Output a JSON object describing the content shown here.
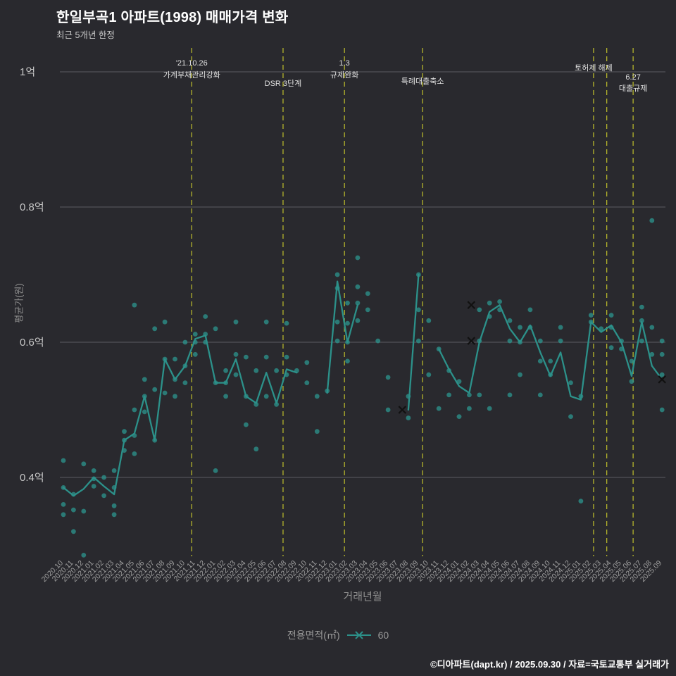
{
  "footer": {
    "credit": "©디아파트(dapt.kr) / 2025.09.30 / 자료=국토교통부 실거래가"
  },
  "chart_data": {
    "type": "line+scatter",
    "title": "한일부곡1 아파트(1998) 매매가격 변화",
    "subtitle": "최근 5개년 한정",
    "xlabel": "거래년월",
    "ylabel": "평균가(원)",
    "unit": "억",
    "ylim": [
      0.28,
      1.0
    ],
    "grid": true,
    "legend": {
      "label": "전용면적(㎡)",
      "marker": "x-line",
      "value": "60",
      "position": "bottom-center"
    },
    "y_ticks": [
      {
        "value": 1.0,
        "label": "1억"
      },
      {
        "value": 0.8,
        "label": "0.8억"
      },
      {
        "value": 0.6,
        "label": "0.6억"
      },
      {
        "value": 0.4,
        "label": "0.4억"
      }
    ],
    "x_categories": [
      "2020.10",
      "2020.11",
      "2020.12",
      "2021.01",
      "2021.02",
      "2021.03",
      "2021.04",
      "2021.05",
      "2021.06",
      "2021.07",
      "2021.08",
      "2021.09",
      "2021.10",
      "2021.11",
      "2021.12",
      "2022.01",
      "2022.02",
      "2022.03",
      "2022.04",
      "2022.05",
      "2022.06",
      "2022.07",
      "2022.08",
      "2022.09",
      "2022.10",
      "2022.11",
      "2022.12",
      "2023.01",
      "2023.02",
      "2023.03",
      "2023.04",
      "2023.05",
      "2023.06",
      "2023.07",
      "2023.08",
      "2023.09",
      "2023.10",
      "2023.11",
      "2023.12",
      "2024.01",
      "2024.02",
      "2024.03",
      "2024.04",
      "2024.05",
      "2024.06",
      "2024.07",
      "2024.08",
      "2024.09",
      "2024.10",
      "2024.11",
      "2024.12",
      "2025.01",
      "2025.02",
      "2025.03",
      "2025.04",
      "2025.05",
      "2025.06",
      "2025.07",
      "2025.08",
      "2025.09"
    ],
    "series": [
      {
        "name": "60",
        "type": "line",
        "values": [
          0.385,
          0.373,
          0.383,
          0.4,
          0.387,
          0.375,
          0.455,
          0.465,
          0.52,
          0.455,
          0.575,
          0.545,
          0.565,
          0.605,
          0.61,
          0.54,
          0.54,
          0.575,
          0.52,
          0.51,
          0.555,
          0.51,
          0.56,
          0.555,
          null,
          null,
          0.525,
          0.69,
          0.6,
          0.655,
          null,
          null,
          null,
          null,
          0.5,
          0.7,
          null,
          0.59,
          0.56,
          0.535,
          0.525,
          0.6,
          0.645,
          0.655,
          0.62,
          0.6,
          0.625,
          0.585,
          0.55,
          0.585,
          0.52,
          0.515,
          0.63,
          0.615,
          0.625,
          0.6,
          0.55,
          0.63,
          0.565,
          0.545
        ]
      }
    ],
    "scatter_points": [
      [
        0,
        0.385
      ],
      [
        0,
        0.36
      ],
      [
        0,
        0.425
      ],
      [
        0,
        0.345
      ],
      [
        1,
        0.375
      ],
      [
        1,
        0.352
      ],
      [
        1,
        0.32
      ],
      [
        2,
        0.42
      ],
      [
        2,
        0.35
      ],
      [
        2,
        0.285
      ],
      [
        3,
        0.41
      ],
      [
        3,
        0.398
      ],
      [
        3,
        0.387
      ],
      [
        4,
        0.4
      ],
      [
        4,
        0.373
      ],
      [
        5,
        0.41
      ],
      [
        5,
        0.385
      ],
      [
        5,
        0.358
      ],
      [
        5,
        0.345
      ],
      [
        6,
        0.468
      ],
      [
        6,
        0.455
      ],
      [
        6,
        0.44
      ],
      [
        7,
        0.655
      ],
      [
        7,
        0.5
      ],
      [
        7,
        0.462
      ],
      [
        7,
        0.435
      ],
      [
        8,
        0.545
      ],
      [
        8,
        0.52
      ],
      [
        8,
        0.497
      ],
      [
        9,
        0.62
      ],
      [
        9,
        0.53
      ],
      [
        9,
        0.455
      ],
      [
        10,
        0.63
      ],
      [
        10,
        0.575
      ],
      [
        10,
        0.525
      ],
      [
        11,
        0.575
      ],
      [
        11,
        0.545
      ],
      [
        11,
        0.52
      ],
      [
        12,
        0.6
      ],
      [
        12,
        0.565
      ],
      [
        12,
        0.54
      ],
      [
        13,
        0.612
      ],
      [
        13,
        0.6
      ],
      [
        13,
        0.582
      ],
      [
        14,
        0.638
      ],
      [
        14,
        0.612
      ],
      [
        14,
        0.6
      ],
      [
        15,
        0.62
      ],
      [
        15,
        0.54
      ],
      [
        15,
        0.41
      ],
      [
        16,
        0.558
      ],
      [
        16,
        0.54
      ],
      [
        16,
        0.52
      ],
      [
        17,
        0.63
      ],
      [
        17,
        0.582
      ],
      [
        17,
        0.552
      ],
      [
        18,
        0.578
      ],
      [
        18,
        0.52
      ],
      [
        18,
        0.478
      ],
      [
        19,
        0.558
      ],
      [
        19,
        0.508
      ],
      [
        19,
        0.442
      ],
      [
        20,
        0.63
      ],
      [
        20,
        0.578
      ],
      [
        20,
        0.52
      ],
      [
        21,
        0.558
      ],
      [
        21,
        0.508
      ],
      [
        22,
        0.628
      ],
      [
        22,
        0.578
      ],
      [
        22,
        0.552
      ],
      [
        23,
        0.558
      ],
      [
        24,
        0.57
      ],
      [
        24,
        0.54
      ],
      [
        25,
        0.52
      ],
      [
        25,
        0.468
      ],
      [
        26,
        0.528
      ],
      [
        27,
        0.7
      ],
      [
        27,
        0.68
      ],
      [
        27,
        0.63
      ],
      [
        27,
        0.602
      ],
      [
        28,
        0.658
      ],
      [
        28,
        0.628
      ],
      [
        28,
        0.6
      ],
      [
        28,
        0.572
      ],
      [
        29,
        0.725
      ],
      [
        29,
        0.682
      ],
      [
        29,
        0.658
      ],
      [
        29,
        0.632
      ],
      [
        30,
        0.672
      ],
      [
        30,
        0.648
      ],
      [
        31,
        0.602
      ],
      [
        32,
        0.548
      ],
      [
        32,
        0.5
      ],
      [
        34,
        0.52
      ],
      [
        34,
        0.488
      ],
      [
        35,
        0.7
      ],
      [
        35,
        0.648
      ],
      [
        35,
        0.602
      ],
      [
        36,
        0.632
      ],
      [
        36,
        0.552
      ],
      [
        37,
        0.59
      ],
      [
        37,
        0.502
      ],
      [
        38,
        0.558
      ],
      [
        38,
        0.522
      ],
      [
        39,
        0.542
      ],
      [
        39,
        0.49
      ],
      [
        40,
        0.522
      ],
      [
        40,
        0.502
      ],
      [
        41,
        0.648
      ],
      [
        41,
        0.602
      ],
      [
        41,
        0.522
      ],
      [
        42,
        0.658
      ],
      [
        42,
        0.638
      ],
      [
        42,
        0.502
      ],
      [
        43,
        0.66
      ],
      [
        43,
        0.648
      ],
      [
        44,
        0.632
      ],
      [
        44,
        0.602
      ],
      [
        44,
        0.522
      ],
      [
        45,
        0.622
      ],
      [
        45,
        0.6
      ],
      [
        45,
        0.552
      ],
      [
        46,
        0.648
      ],
      [
        46,
        0.622
      ],
      [
        47,
        0.602
      ],
      [
        47,
        0.572
      ],
      [
        47,
        0.522
      ],
      [
        48,
        0.572
      ],
      [
        48,
        0.552
      ],
      [
        49,
        0.622
      ],
      [
        49,
        0.602
      ],
      [
        50,
        0.54
      ],
      [
        50,
        0.49
      ],
      [
        51,
        0.52
      ],
      [
        51,
        0.365
      ],
      [
        52,
        0.64
      ],
      [
        52,
        0.63
      ],
      [
        53,
        0.62
      ],
      [
        54,
        0.64
      ],
      [
        54,
        0.622
      ],
      [
        54,
        0.592
      ],
      [
        55,
        0.602
      ],
      [
        55,
        0.59
      ],
      [
        56,
        0.572
      ],
      [
        56,
        0.542
      ],
      [
        57,
        0.652
      ],
      [
        57,
        0.632
      ],
      [
        57,
        0.602
      ],
      [
        58,
        0.78
      ],
      [
        58,
        0.622
      ],
      [
        58,
        0.582
      ],
      [
        59,
        0.602
      ],
      [
        59,
        0.582
      ],
      [
        59,
        0.552
      ],
      [
        59,
        0.5
      ]
    ],
    "x_markers": [
      [
        33.4,
        0.5
      ],
      [
        40.2,
        0.655
      ],
      [
        40.2,
        0.602
      ],
      [
        59,
        0.545
      ]
    ],
    "events": [
      {
        "x_index": 12.65,
        "labels": [
          {
            "text": "'21.10.26",
            "y": 93
          },
          {
            "text": "가계부채관리강화",
            "y": 110
          }
        ]
      },
      {
        "x_index": 21.65,
        "labels": [
          {
            "text": "DSR 3단계",
            "y": 122
          }
        ]
      },
      {
        "x_index": 27.7,
        "labels": [
          {
            "text": "1.3",
            "y": 93
          },
          {
            "text": "규제완화",
            "y": 110
          }
        ]
      },
      {
        "x_index": 35.4,
        "labels": [
          {
            "text": "특례대출축소",
            "y": 119
          }
        ]
      },
      {
        "x_index": 52.25,
        "labels": [
          {
            "text": "토허제 해제",
            "y": 100
          }
        ]
      },
      {
        "x_index": 53.55,
        "labels": []
      },
      {
        "x_index": 56.15,
        "labels": [
          {
            "text": "6.27",
            "y": 113
          },
          {
            "text": "대출규제",
            "y": 129
          }
        ]
      }
    ],
    "colors": {
      "background": "#29292e",
      "accent_teal": "#2c918a",
      "event_line": "#b5b52c",
      "grid": "#5c5c62",
      "marker_x": "#111111",
      "tick_label": "#a0a0a0",
      "y_tick_label": "#c6c6c6",
      "annotation_text": "#e0e0e0"
    }
  }
}
